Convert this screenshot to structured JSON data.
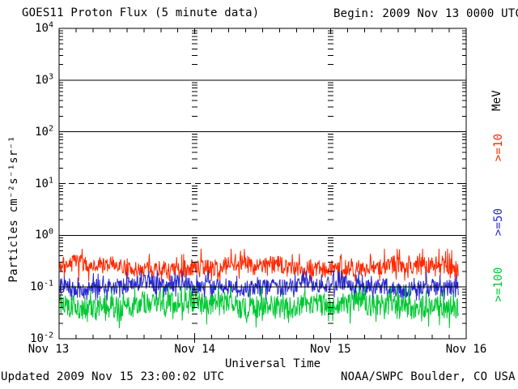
{
  "header": {
    "title": "GOES11 Proton Flux (5 minute data)",
    "begin_label": "Begin: 2009 Nov 13 0000 UTC"
  },
  "footer": {
    "updated": "Updated 2009 Nov 15 23:00:02 UTC",
    "attribution": "NOAA/SWPC Boulder, CO USA"
  },
  "chart_data": {
    "type": "line",
    "title": "GOES11 Proton Flux (5 minute data)",
    "xlabel": "Universal Time",
    "ylabel": "Particles cm⁻²s⁻¹sr⁻¹",
    "units_label": "MeV",
    "y_scale": "log",
    "ylim": [
      0.01,
      10000
    ],
    "y_tick_exponents": [
      4,
      3,
      2,
      1,
      0,
      -1,
      -2
    ],
    "y_gridlines_solid": [
      1000,
      100,
      1,
      0.1
    ],
    "y_gridlines_dashed": [
      10
    ],
    "x_range_hours": [
      0,
      72
    ],
    "x_tick_interval_hours": 3,
    "x_day_gridlines_hours": [
      24,
      48
    ],
    "x_tick_labels": [
      "Nov 13",
      "Nov 14",
      "Nov 15",
      "Nov 16"
    ],
    "data_end_hour": 70.6,
    "points_per_series": 850,
    "legend": [
      {
        "label": ">=10",
        "color": "#ff2800"
      },
      {
        "label": ">=50",
        "color": "#2828cd"
      },
      {
        "label": ">=100",
        "color": "#00c832"
      }
    ],
    "series": [
      {
        "name": ">=10 MeV",
        "color": "#ff2800",
        "seed": 7,
        "mean_flux": 0.24,
        "min_flux": 0.13,
        "max_flux": 0.55
      },
      {
        "name": ">=50 MeV",
        "color": "#2828cd",
        "seed": 23,
        "mean_flux": 0.105,
        "min_flux": 0.055,
        "max_flux": 0.21
      },
      {
        "name": ">=100 MeV",
        "color": "#00c832",
        "seed": 41,
        "mean_flux": 0.045,
        "min_flux": 0.016,
        "max_flux": 0.105
      }
    ],
    "frame_color": "#000000",
    "background_color": "#ffffff"
  }
}
